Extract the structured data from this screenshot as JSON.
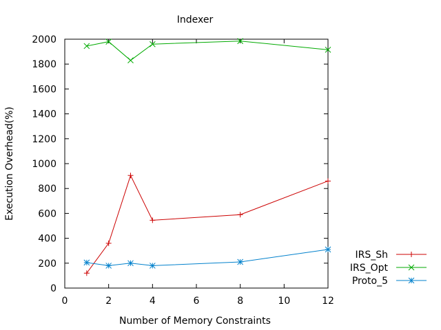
{
  "chart_data": {
    "type": "line",
    "title": "Indexer",
    "xlabel": "Number of Memory Constraints",
    "ylabel": "Execution Overhead(%)",
    "xlim": [
      0,
      12
    ],
    "ylim": [
      0,
      2000
    ],
    "xticks": [
      0,
      2,
      4,
      6,
      8,
      10,
      12
    ],
    "yticks": [
      0,
      200,
      400,
      600,
      800,
      1000,
      1200,
      1400,
      1600,
      1800,
      2000
    ],
    "grid": false,
    "legend_position": "bottom-right outside",
    "x": [
      1,
      2,
      3,
      4,
      8,
      12
    ],
    "series": [
      {
        "name": "IRS_Sh",
        "color": "#cc0000",
        "marker": "plus",
        "values": [
          120,
          360,
          905,
          545,
          590,
          860
        ]
      },
      {
        "name": "IRS_Opt",
        "color": "#00aa00",
        "marker": "cross",
        "values": [
          1945,
          1980,
          1830,
          1960,
          1985,
          1915
        ]
      },
      {
        "name": "Proto_5",
        "color": "#0080cc",
        "marker": "star",
        "values": [
          205,
          180,
          200,
          180,
          210,
          310
        ]
      }
    ]
  }
}
